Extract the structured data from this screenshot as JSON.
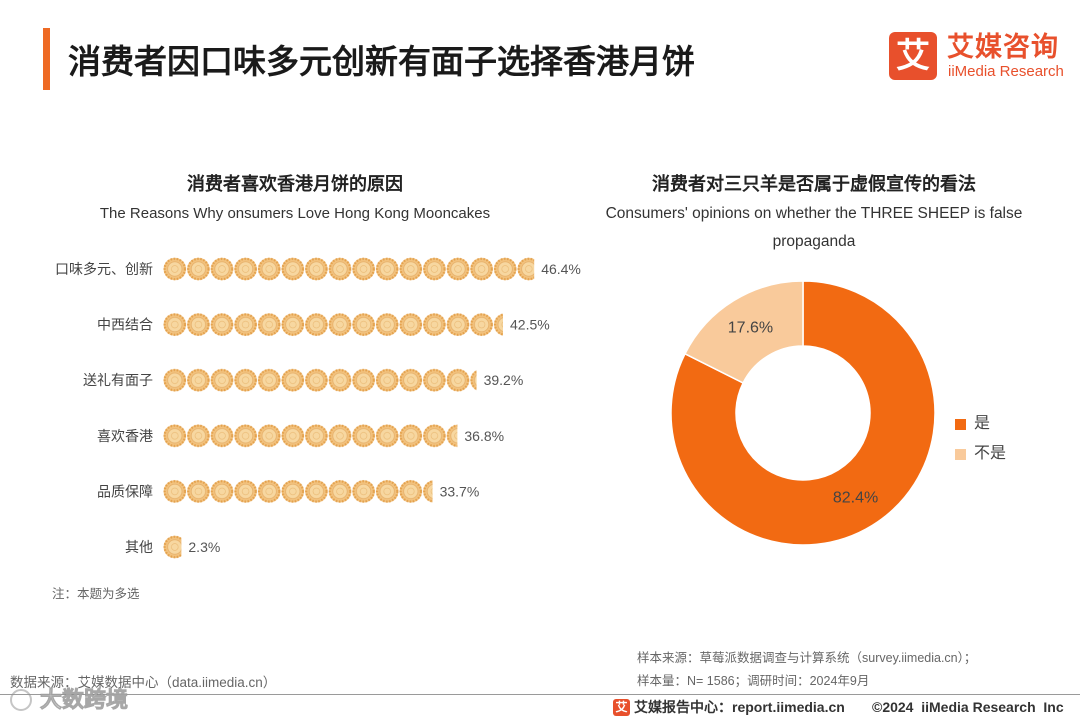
{
  "header": {
    "title": "消费者因口味多元创新有面子选择香港月饼"
  },
  "logo": {
    "glyph": "艾",
    "name_cn": "艾媒咨询",
    "name_en": "iiMedia Research",
    "color": "#E8502C"
  },
  "accent_color": "#EE6A24",
  "chart_data": [
    {
      "type": "bar",
      "orientation": "horizontal",
      "title": "消费者喜欢香港月饼的原因",
      "subtitle": "The Reasons Why onsumers Love Hong Kong Mooncakes",
      "categories": [
        "口味多元、创新",
        "中西结合",
        "送礼有面子",
        "喜欢香港",
        "品质保障",
        "其他"
      ],
      "values": [
        46.4,
        42.5,
        39.2,
        36.8,
        33.7,
        2.3
      ],
      "unit": "%",
      "mark_icon": "mooncake-icon",
      "note": "注：本题为多选"
    },
    {
      "type": "pie",
      "donut": true,
      "title": "消费者对三只羊是否属于虚假宣传的看法",
      "subtitle": "Consumers' opinions on whether the THREE SHEEP  is false propaganda",
      "categories": [
        "是",
        "不是"
      ],
      "values": [
        82.4,
        17.6
      ],
      "unit": "%",
      "colors": [
        "#F26A12",
        "#F9CA9B"
      ],
      "legend": "right"
    }
  ],
  "sample": {
    "source": "样本来源：草莓派数据调查与计算系统（survey.iimedia.cn）；",
    "size": "样本量：N= 1586；调研时间：2024年9月"
  },
  "data_source": "数据来源：艾媒数据中心（data.iimedia.cn）",
  "footer": {
    "logo_glyph": "艾",
    "report_center": "艾媒报告中心：report.iimedia.cn",
    "copyright": "©2024  iiMedia Research  Inc"
  },
  "watermark": "大数跨境"
}
